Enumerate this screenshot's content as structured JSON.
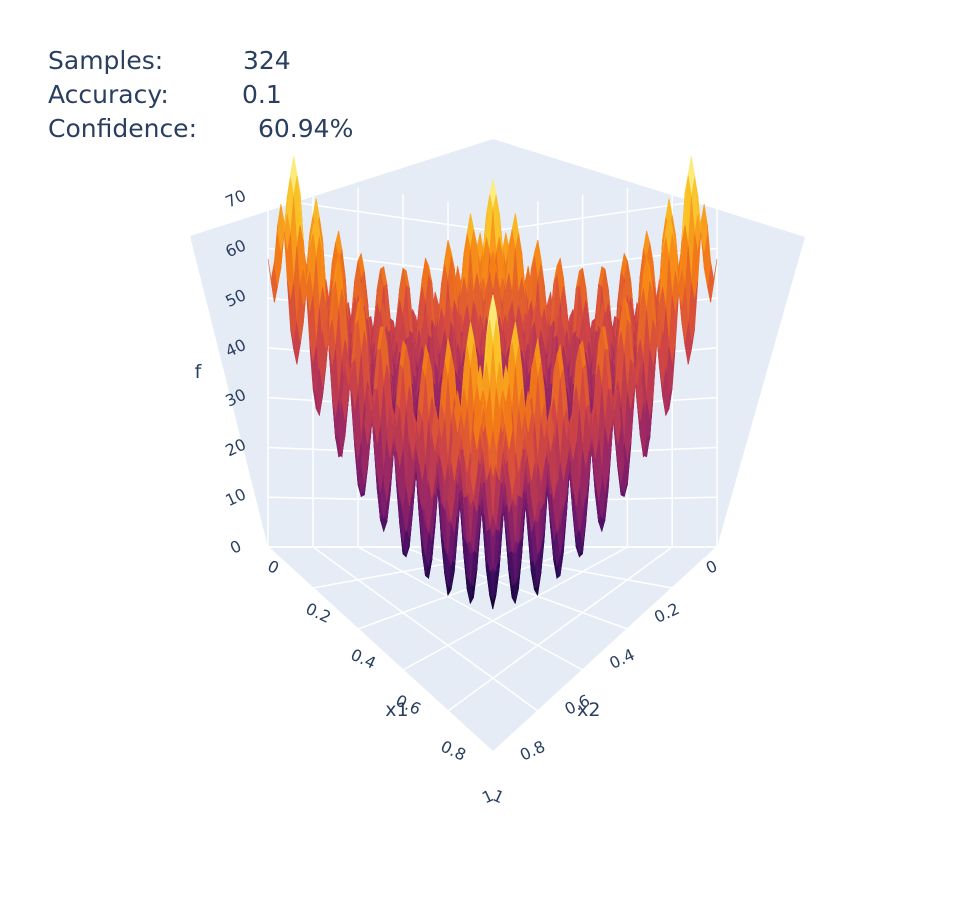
{
  "stats": [
    {
      "label": "Samples:",
      "value": "324"
    },
    {
      "label": "Accuracy:",
      "value": "0.1"
    },
    {
      "label": "Confidence:",
      "value": "60.94%"
    }
  ],
  "chart_data": {
    "type": "surface",
    "colorscale": "inferno",
    "axes": {
      "x1": {
        "label": "x1",
        "range": [
          0,
          1
        ],
        "ticks": [
          "0",
          "0.2",
          "0.4",
          "0.6",
          "0.8",
          "1"
        ]
      },
      "x2": {
        "label": "x2",
        "range": [
          0,
          1
        ],
        "ticks": [
          "0",
          "0.2",
          "0.4",
          "0.6",
          "0.8",
          "1"
        ]
      },
      "f": {
        "label": "f",
        "range": [
          0,
          75
        ],
        "ticks": [
          "0",
          "10",
          "20",
          "30",
          "40",
          "50",
          "60",
          "70"
        ]
      }
    },
    "grid": true,
    "scene_background": "#e5ecf6",
    "surface_description_values": {
      "min": 0,
      "max": 78,
      "center_peak": 48
    }
  }
}
